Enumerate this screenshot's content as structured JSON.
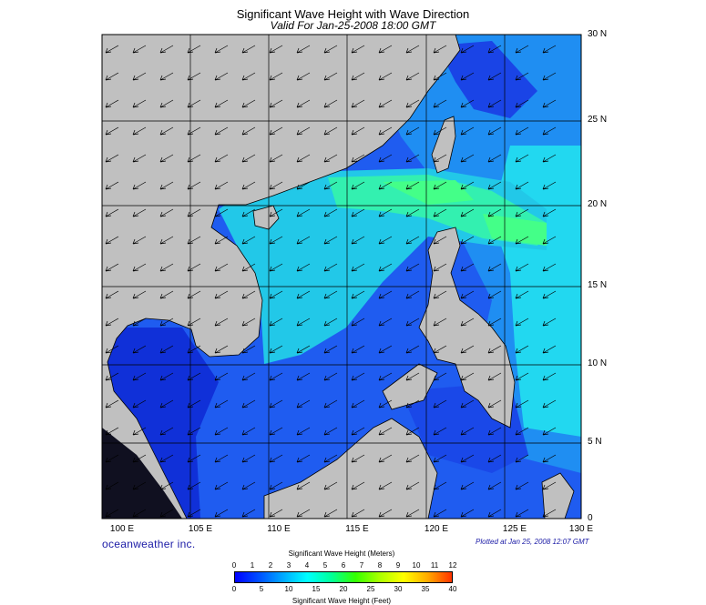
{
  "title": "Significant Wave Height with Wave Direction",
  "subtitle": "Valid For Jan-25-2008 18:00 GMT",
  "lat_labels": [
    "30 N",
    "25 N",
    "20 N",
    "15 N",
    "10 N",
    "5 N",
    "0"
  ],
  "lon_labels": [
    "100 E",
    "105 E",
    "110 E",
    "115 E",
    "120 E",
    "125 E",
    "130 E"
  ],
  "branding": "oceanweather inc.",
  "plotted_note": "Plotted at Jan 25, 2008 12:07 GMT",
  "scale": {
    "meters_title": "Significant Wave Height (Meters)",
    "meters_ticks": [
      "0",
      "1",
      "2",
      "3",
      "4",
      "5",
      "6",
      "7",
      "8",
      "9",
      "10",
      "11",
      "12"
    ],
    "feet_title": "Significant Wave Height (Feet)",
    "feet_ticks": [
      "0",
      "5",
      "10",
      "15",
      "20",
      "25",
      "30",
      "35",
      "40"
    ]
  },
  "colors": {
    "land": "#c0c0c0",
    "deep_blue": "#0000cc",
    "blue": "#1f5cf0",
    "light_blue": "#1f9cf5",
    "cyan": "#22eef0",
    "green_cyan": "#33f5a5",
    "green": "#55ff55",
    "colorbar_stops": [
      "#0000ff",
      "#0050ff",
      "#00aaff",
      "#00ffff",
      "#00ff99",
      "#33ff00",
      "#aaff00",
      "#ffff00",
      "#ffaa00",
      "#ff3300"
    ]
  },
  "arrow_direction": "southwest"
}
